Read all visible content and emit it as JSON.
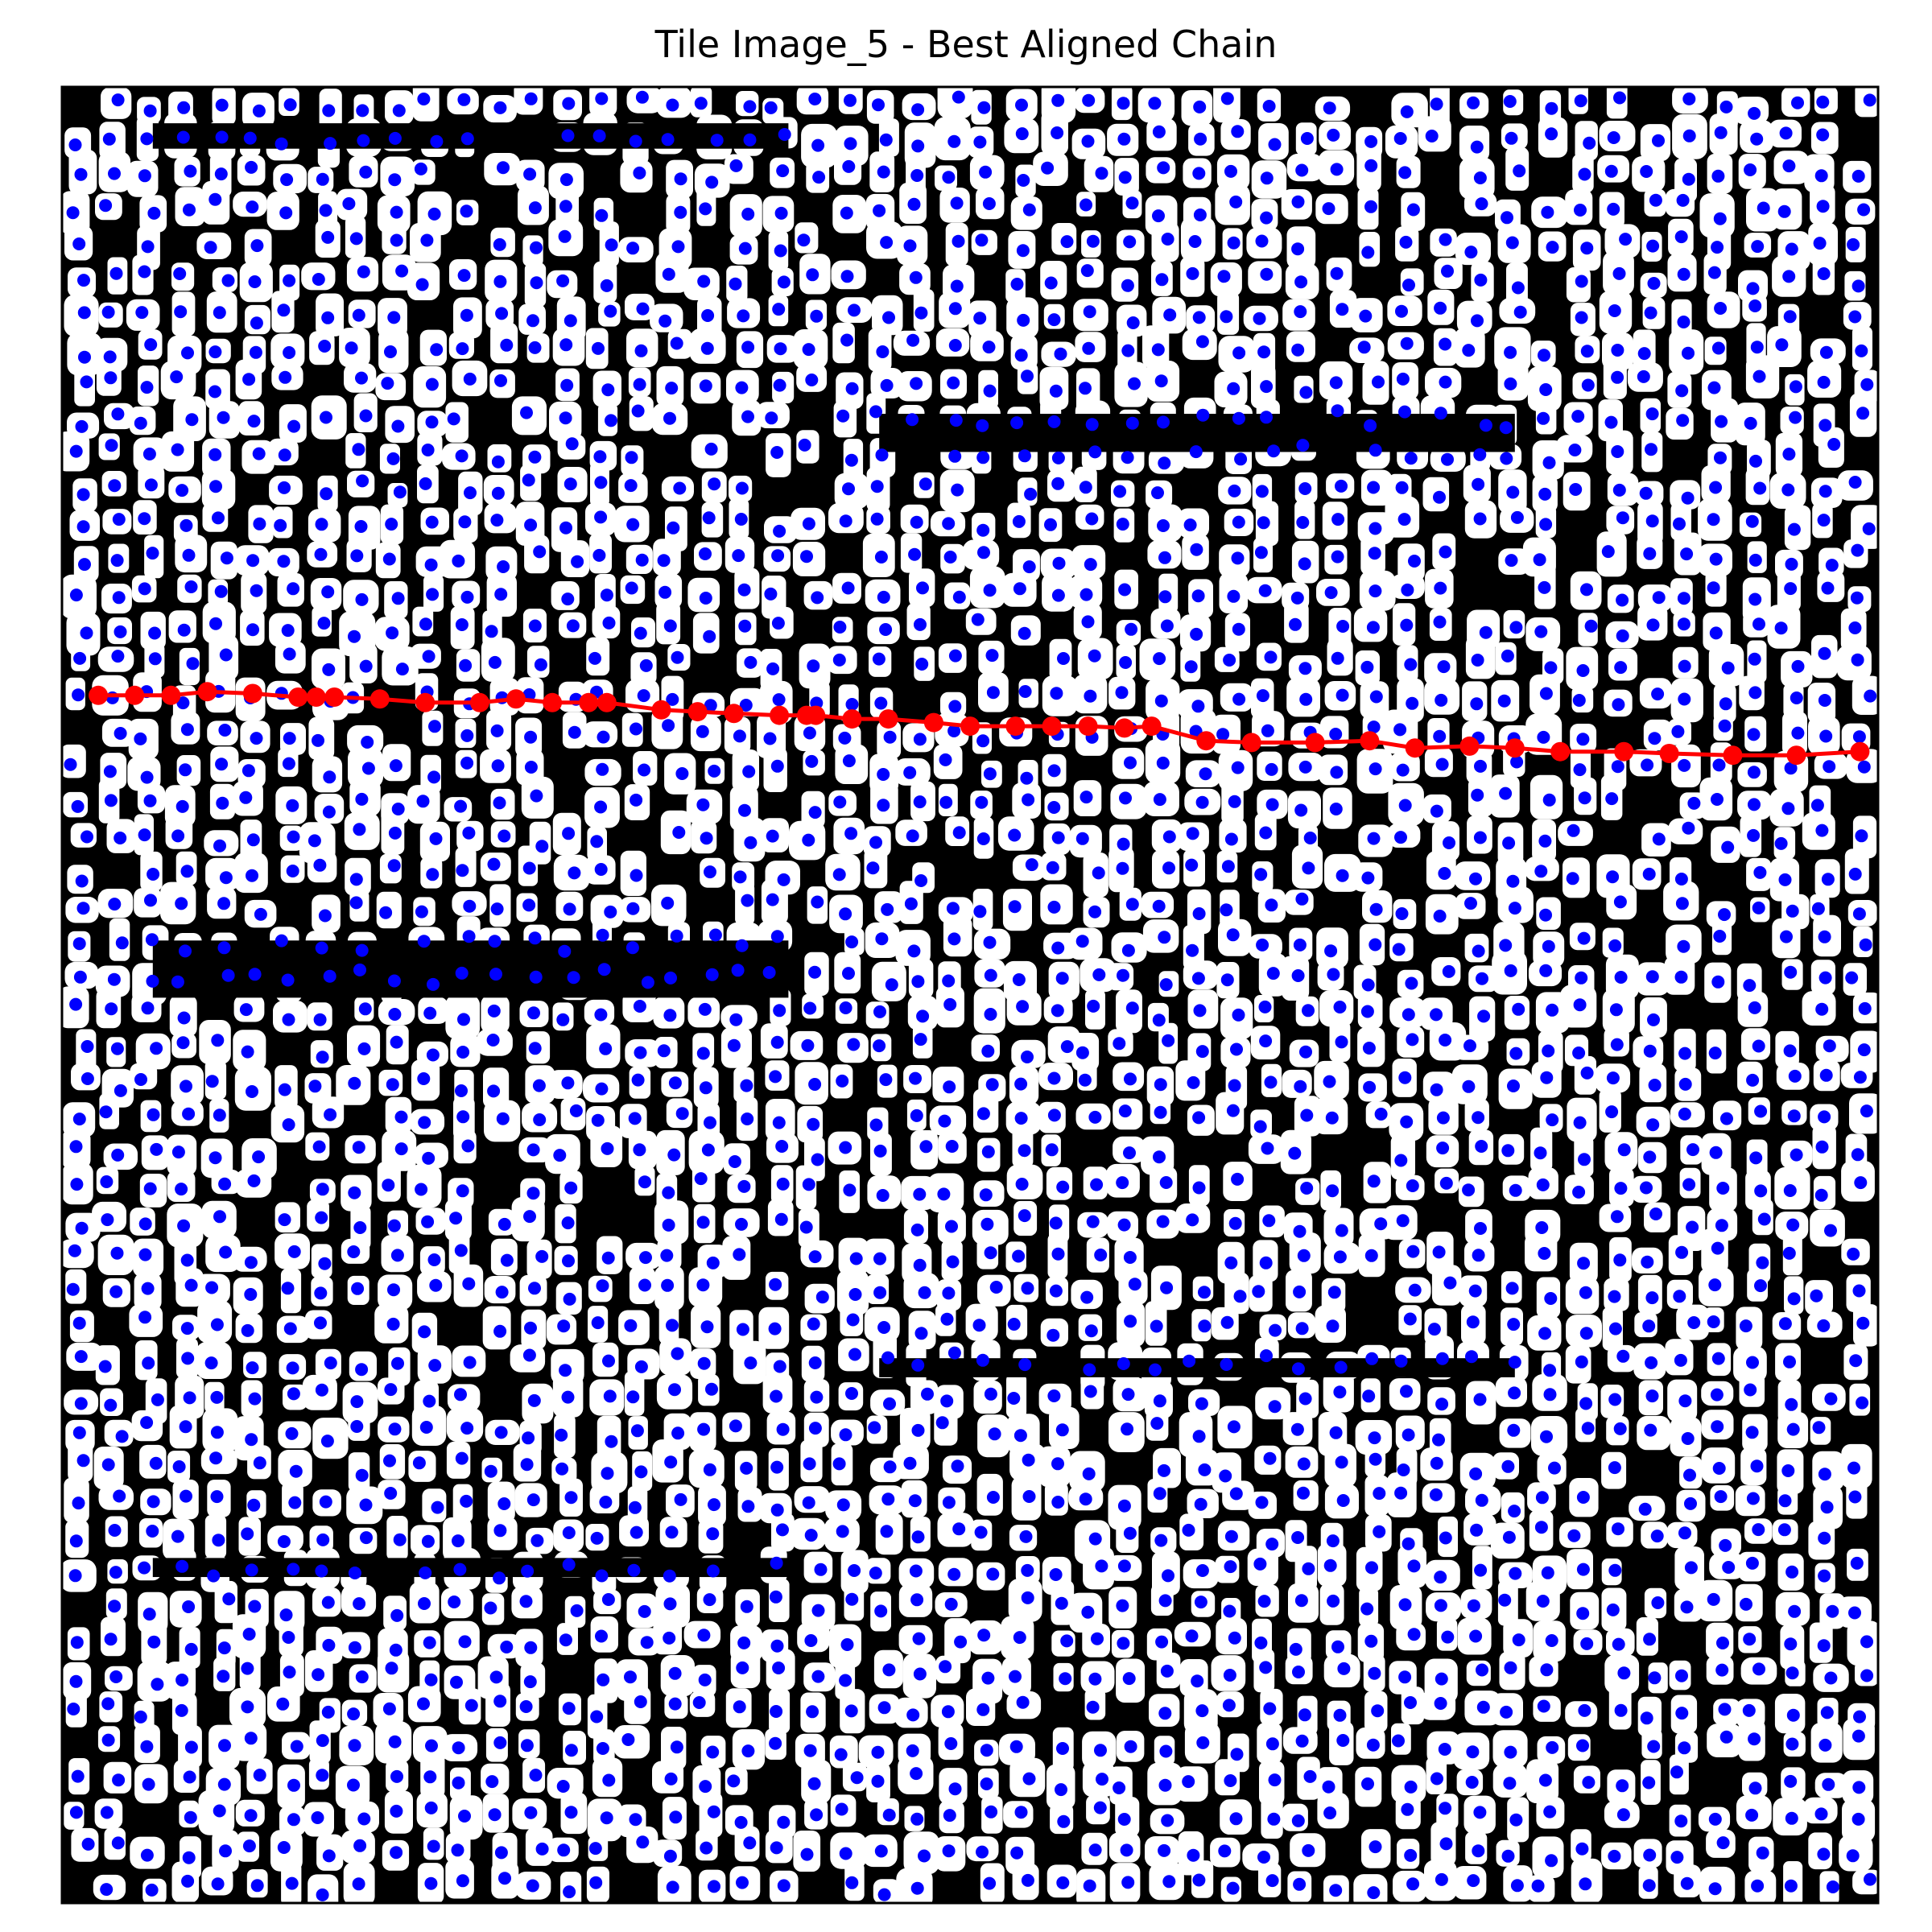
{
  "figure": {
    "title": "Tile Image_5 - Best Aligned Chain"
  },
  "colors": {
    "background": "#000000",
    "cell": "#ffffff",
    "centroid": "#0000ff",
    "chain": "#ff0000",
    "frame": "#000000"
  },
  "chart_data": {
    "type": "scatter",
    "title": "Tile Image_5 - Best Aligned Chain",
    "xlabel": "",
    "ylabel": "",
    "axes_visible": false,
    "grid": false,
    "description_of_layers": [
      "binary cell mask image",
      "cell centroids (blue points)",
      "best aligned chain (red line with markers)"
    ],
    "chain": {
      "x": [
        0.02,
        0.04,
        0.06,
        0.08,
        0.105,
        0.13,
        0.14,
        0.15,
        0.175,
        0.2,
        0.23,
        0.25,
        0.27,
        0.29,
        0.3,
        0.33,
        0.35,
        0.37,
        0.395,
        0.41,
        0.415,
        0.435,
        0.455,
        0.48,
        0.5,
        0.525,
        0.545,
        0.565,
        0.585,
        0.6,
        0.63,
        0.655,
        0.69,
        0.72,
        0.745,
        0.775,
        0.8,
        0.825,
        0.86,
        0.885,
        0.92,
        0.955,
        0.99
      ],
      "y": [
        0.335,
        0.335,
        0.335,
        0.333,
        0.334,
        0.336,
        0.336,
        0.336,
        0.337,
        0.339,
        0.339,
        0.337,
        0.339,
        0.339,
        0.339,
        0.343,
        0.344,
        0.345,
        0.346,
        0.346,
        0.346,
        0.348,
        0.348,
        0.35,
        0.352,
        0.352,
        0.352,
        0.352,
        0.353,
        0.352,
        0.36,
        0.361,
        0.361,
        0.36,
        0.364,
        0.363,
        0.364,
        0.366,
        0.366,
        0.367,
        0.368,
        0.368,
        0.366
      ]
    },
    "centroid_grid": {
      "spacing_fraction": 0.0192,
      "jitter_fraction": 0.006,
      "point_count": 1700
    }
  }
}
